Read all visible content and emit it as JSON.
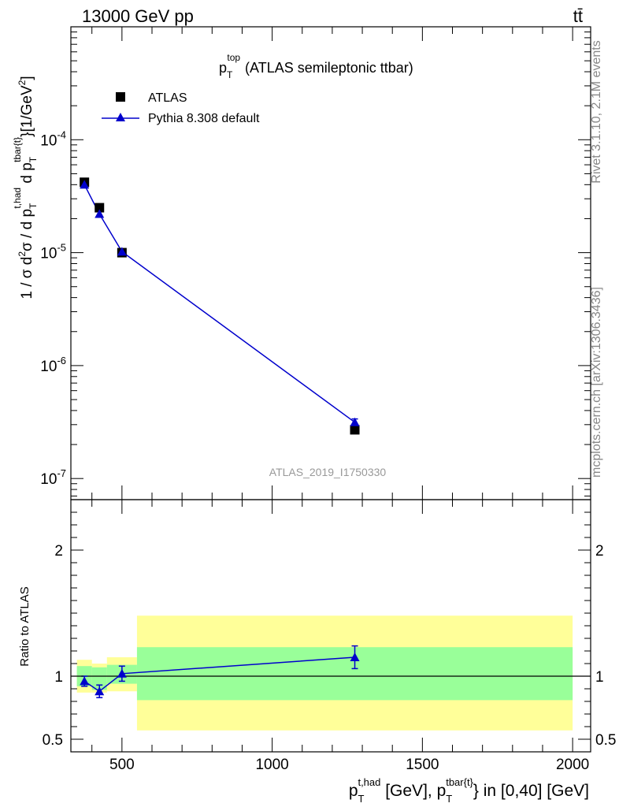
{
  "header": {
    "energy_label": "13000 GeV pp",
    "process_label": "tt̄"
  },
  "side_labels": {
    "rivet": "Rivet 3.1.10,  2.1M events",
    "mcplots": "mcplots.cern.ch [arXiv:1306.3436]"
  },
  "colors": {
    "data": "#000000",
    "mc": "#0000cc",
    "band_inner": "#99ff99",
    "band_outer": "#ffff99"
  },
  "chart_data": [
    {
      "type": "scatter",
      "panel": "main",
      "title_main": "p",
      "title_sub": "T",
      "title_sup": "top",
      "title_rest": "(ATLAS semileptonic ttbar)",
      "ylabel": "1 / σ d²σ / d p_T^{t,had} d p_T^{tbar{t}} [1/GeV²]",
      "yscale": "log",
      "ylim": [
        6.5e-08,
        0.001
      ],
      "y_ticks": [
        {
          "exp": "-7"
        },
        {
          "exp": "-6"
        },
        {
          "exp": "-5"
        },
        {
          "exp": "-4"
        }
      ],
      "watermark": "ATLAS_2019_I1750330",
      "legend": {
        "position": "top-left",
        "entries": [
          "ATLAS",
          "Pythia 8.308 default"
        ]
      },
      "series": [
        {
          "name": "ATLAS",
          "marker": "square",
          "x": [
            375,
            425,
            500,
            1275
          ],
          "y": [
            4.2e-05,
            2.5e-05,
            1e-05,
            2.7e-07
          ]
        },
        {
          "name": "Pythia 8.308 default",
          "marker": "triangle",
          "line": true,
          "x": [
            375,
            425,
            500,
            1275
          ],
          "y": [
            4e-05,
            2.2e-05,
            1.02e-05,
            3.15e-07
          ],
          "yerr": [
            0,
            0,
            0,
            2.2e-08
          ]
        }
      ]
    },
    {
      "type": "line",
      "panel": "ratio",
      "ylabel": "Ratio to ATLAS",
      "xlabel": "p_T^{t,had} [GeV], p_T^{tbar{t}} in [0,40] [GeV]",
      "xlim": [
        330,
        2060
      ],
      "ylim": [
        0.4,
        2.4
      ],
      "y_ticks": [
        0.5,
        1,
        2
      ],
      "y_tick_labels": [
        "0.5",
        "1",
        "2"
      ],
      "x_ticks": [
        500,
        1000,
        1500,
        2000
      ],
      "x_tick_labels": [
        "500",
        "1000",
        "1500",
        "2000"
      ],
      "reference": 1.0,
      "bands": [
        {
          "x0": 350,
          "x1": 400,
          "inner": [
            0.92,
            1.08
          ],
          "outer": [
            0.87,
            1.13
          ]
        },
        {
          "x0": 400,
          "x1": 450,
          "inner": [
            0.89,
            1.07
          ],
          "outer": [
            0.87,
            1.1
          ]
        },
        {
          "x0": 450,
          "x1": 550,
          "inner": [
            0.94,
            1.09
          ],
          "outer": [
            0.88,
            1.15
          ]
        },
        {
          "x0": 550,
          "x1": 2000,
          "inner": [
            0.81,
            1.23
          ],
          "outer": [
            0.57,
            1.48
          ]
        }
      ],
      "series": [
        {
          "name": "Pythia 8.308 default",
          "x": [
            375,
            425,
            500,
            1275
          ],
          "y": [
            0.96,
            0.88,
            1.02,
            1.15
          ],
          "yerr": [
            0.04,
            0.05,
            0.06,
            0.09
          ]
        }
      ]
    }
  ]
}
